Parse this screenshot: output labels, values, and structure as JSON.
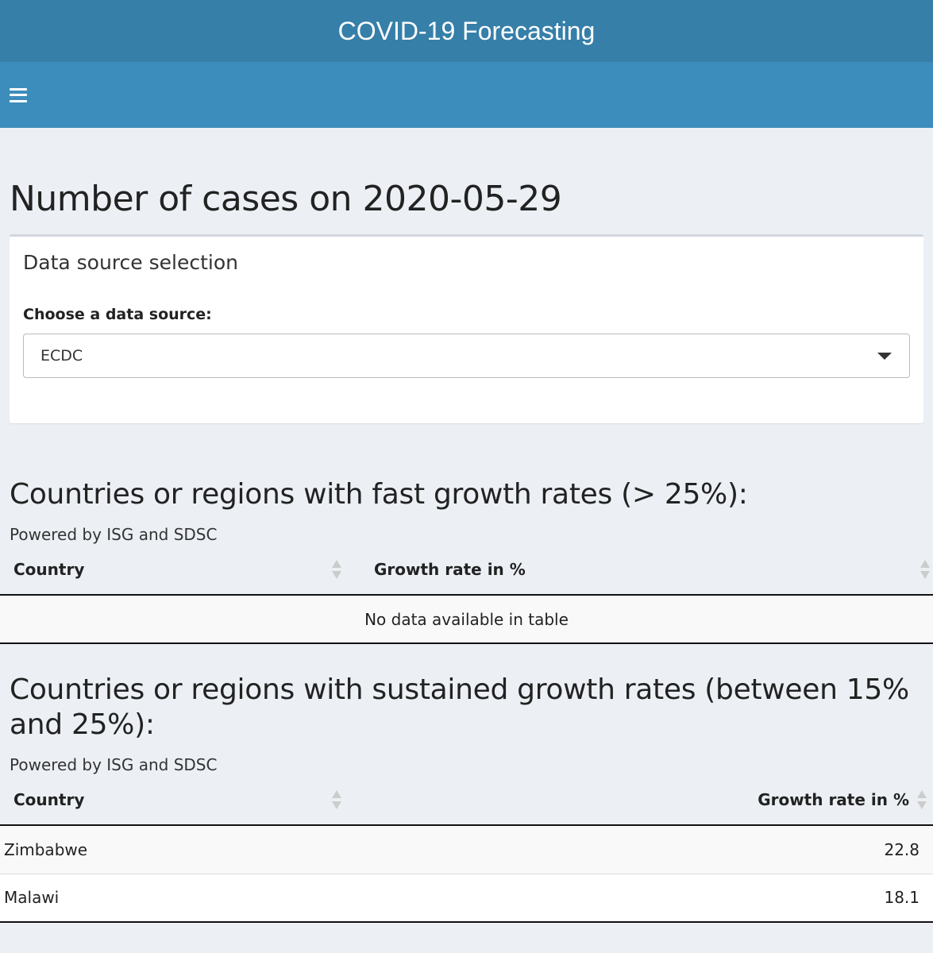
{
  "header": {
    "title": "COVID-19 Forecasting"
  },
  "page": {
    "title": "Number of cases on 2020-05-29"
  },
  "data_source_box": {
    "title": "Data source selection",
    "label": "Choose a data source:",
    "selected": "ECDC"
  },
  "fast_growth": {
    "title": "Countries or regions with fast growth rates (> 25%):",
    "powered_by": "Powered by ISG and SDSC",
    "columns": [
      "Country",
      "Growth rate in %"
    ],
    "empty_message": "No data available in table"
  },
  "sustained_growth": {
    "title": "Countries or regions with sustained growth rates (between 15% and 25%):",
    "powered_by": "Powered by ISG and SDSC",
    "columns": [
      "Country",
      "Growth rate in %"
    ],
    "rows": [
      {
        "country": "Zimbabwe",
        "rate": "22.8"
      },
      {
        "country": "Malawi",
        "rate": "18.1"
      }
    ]
  },
  "icons": {
    "menu": "hamburger-icon",
    "dropdown": "caret-down-icon",
    "sort": "sort-both-icon"
  },
  "colors": {
    "title_bar": "#367fa9",
    "nav_bar": "#3c8dbc",
    "background": "#ecf0f5"
  }
}
